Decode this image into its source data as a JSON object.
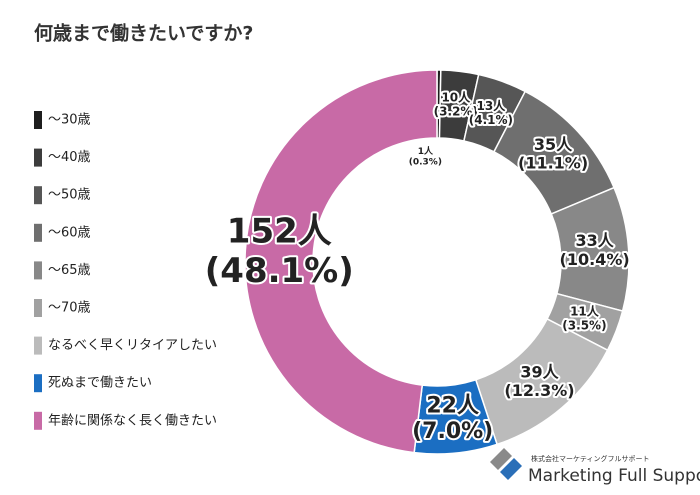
{
  "chart_data": {
    "type": "donut",
    "title": "何歳まで働きたいですか?",
    "categories": [
      "～30歳",
      "～40歳",
      "～50歳",
      "～60歳",
      "～65歳",
      "～70歳",
      "なるべく早くリタイアしたい",
      "死ぬまで働きたい",
      "年齢に関係なく長く働きたい"
    ],
    "values": [
      1,
      10,
      13,
      35,
      33,
      11,
      39,
      22,
      152
    ],
    "value_labels": [
      "1人",
      "10人",
      "13人",
      "35人",
      "33人",
      "11人",
      "39人",
      "22人",
      "152人"
    ],
    "percents": [
      0.3,
      3.2,
      4.1,
      11.1,
      10.4,
      3.5,
      12.3,
      7.0,
      48.1
    ],
    "percent_labels": [
      "(0.3%)",
      "(3.2%)",
      "(4.1%)",
      "(11.1%)",
      "(10.4%)",
      "(3.5%)",
      "(12.3%)",
      "(7.0%)",
      "(48.1%)"
    ],
    "colors": [
      "#1e1e1e",
      "#3c3c3c",
      "#565656",
      "#6f6f6f",
      "#888888",
      "#a1a1a1",
      "#bbbbbb",
      "#1b6ec2",
      "#c86aa6"
    ],
    "legend": "left"
  },
  "brand": {
    "company": "株式会社マーケティングフルサポート",
    "name": "Marketing Full Support"
  }
}
